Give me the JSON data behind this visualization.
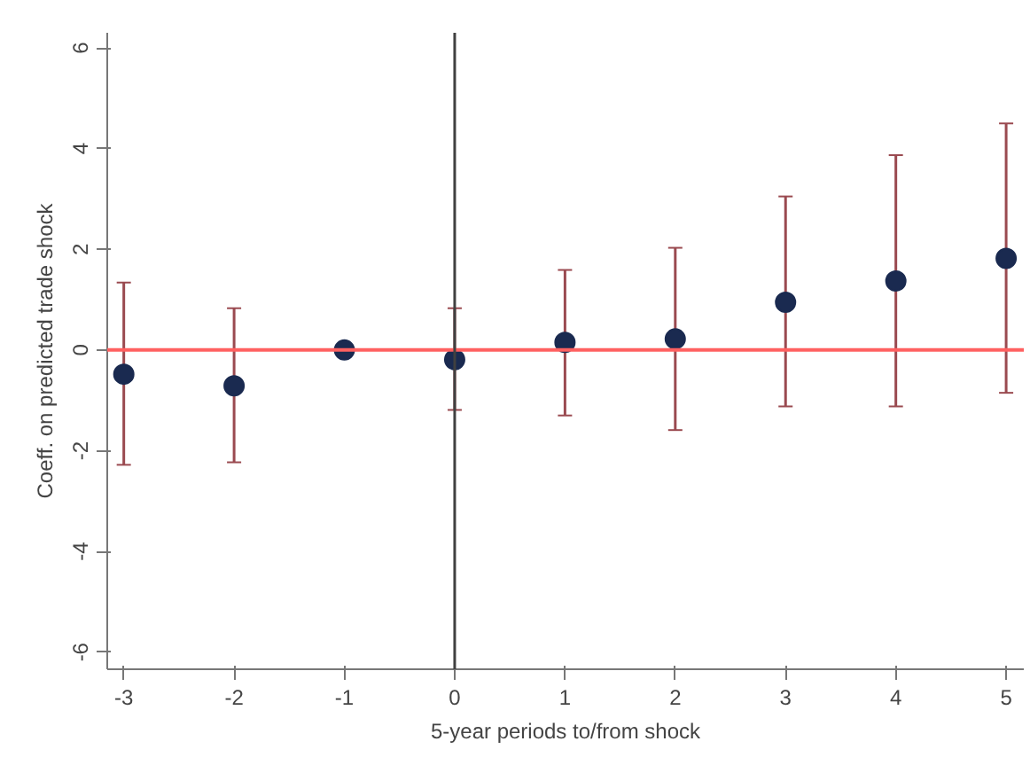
{
  "chart_data": {
    "type": "scatter",
    "xlabel": "5-year periods to/from shock",
    "ylabel": "Coeff. on predicted trade shock",
    "x": [
      -3,
      -2,
      -1,
      0,
      1,
      2,
      3,
      4,
      5
    ],
    "series": [
      {
        "color": "#1a2a50",
        "values": [
          -0.48,
          -0.71,
          0,
          -0.19,
          0.15,
          0.22,
          0.95,
          1.37,
          1.82
        ],
        "errors": [
          [
            -2.28,
            1.34
          ],
          [
            -2.23,
            0.83
          ],
          null,
          [
            -1.19,
            0.83
          ],
          [
            -1.3,
            1.59
          ],
          [
            -1.59,
            2.03
          ],
          [
            -1.12,
            3.05
          ],
          [
            -1.12,
            3.87
          ],
          [
            -0.85,
            4.5
          ]
        ]
      }
    ],
    "xlim": [
      -3.15,
      5.16
    ],
    "ylim": [
      -6.34,
      6.3
    ],
    "xticks": [
      -3,
      -2,
      -1,
      0,
      1,
      2,
      3,
      4,
      5
    ],
    "yticks": [
      -6,
      -4,
      -2,
      0,
      2,
      4,
      6
    ],
    "ref_lines": [
      {
        "axis": "y",
        "value": 0,
        "color": "#ff6060"
      },
      {
        "axis": "x",
        "value": 0,
        "color": "#404040"
      }
    ],
    "grid": false,
    "marker": "circle"
  }
}
